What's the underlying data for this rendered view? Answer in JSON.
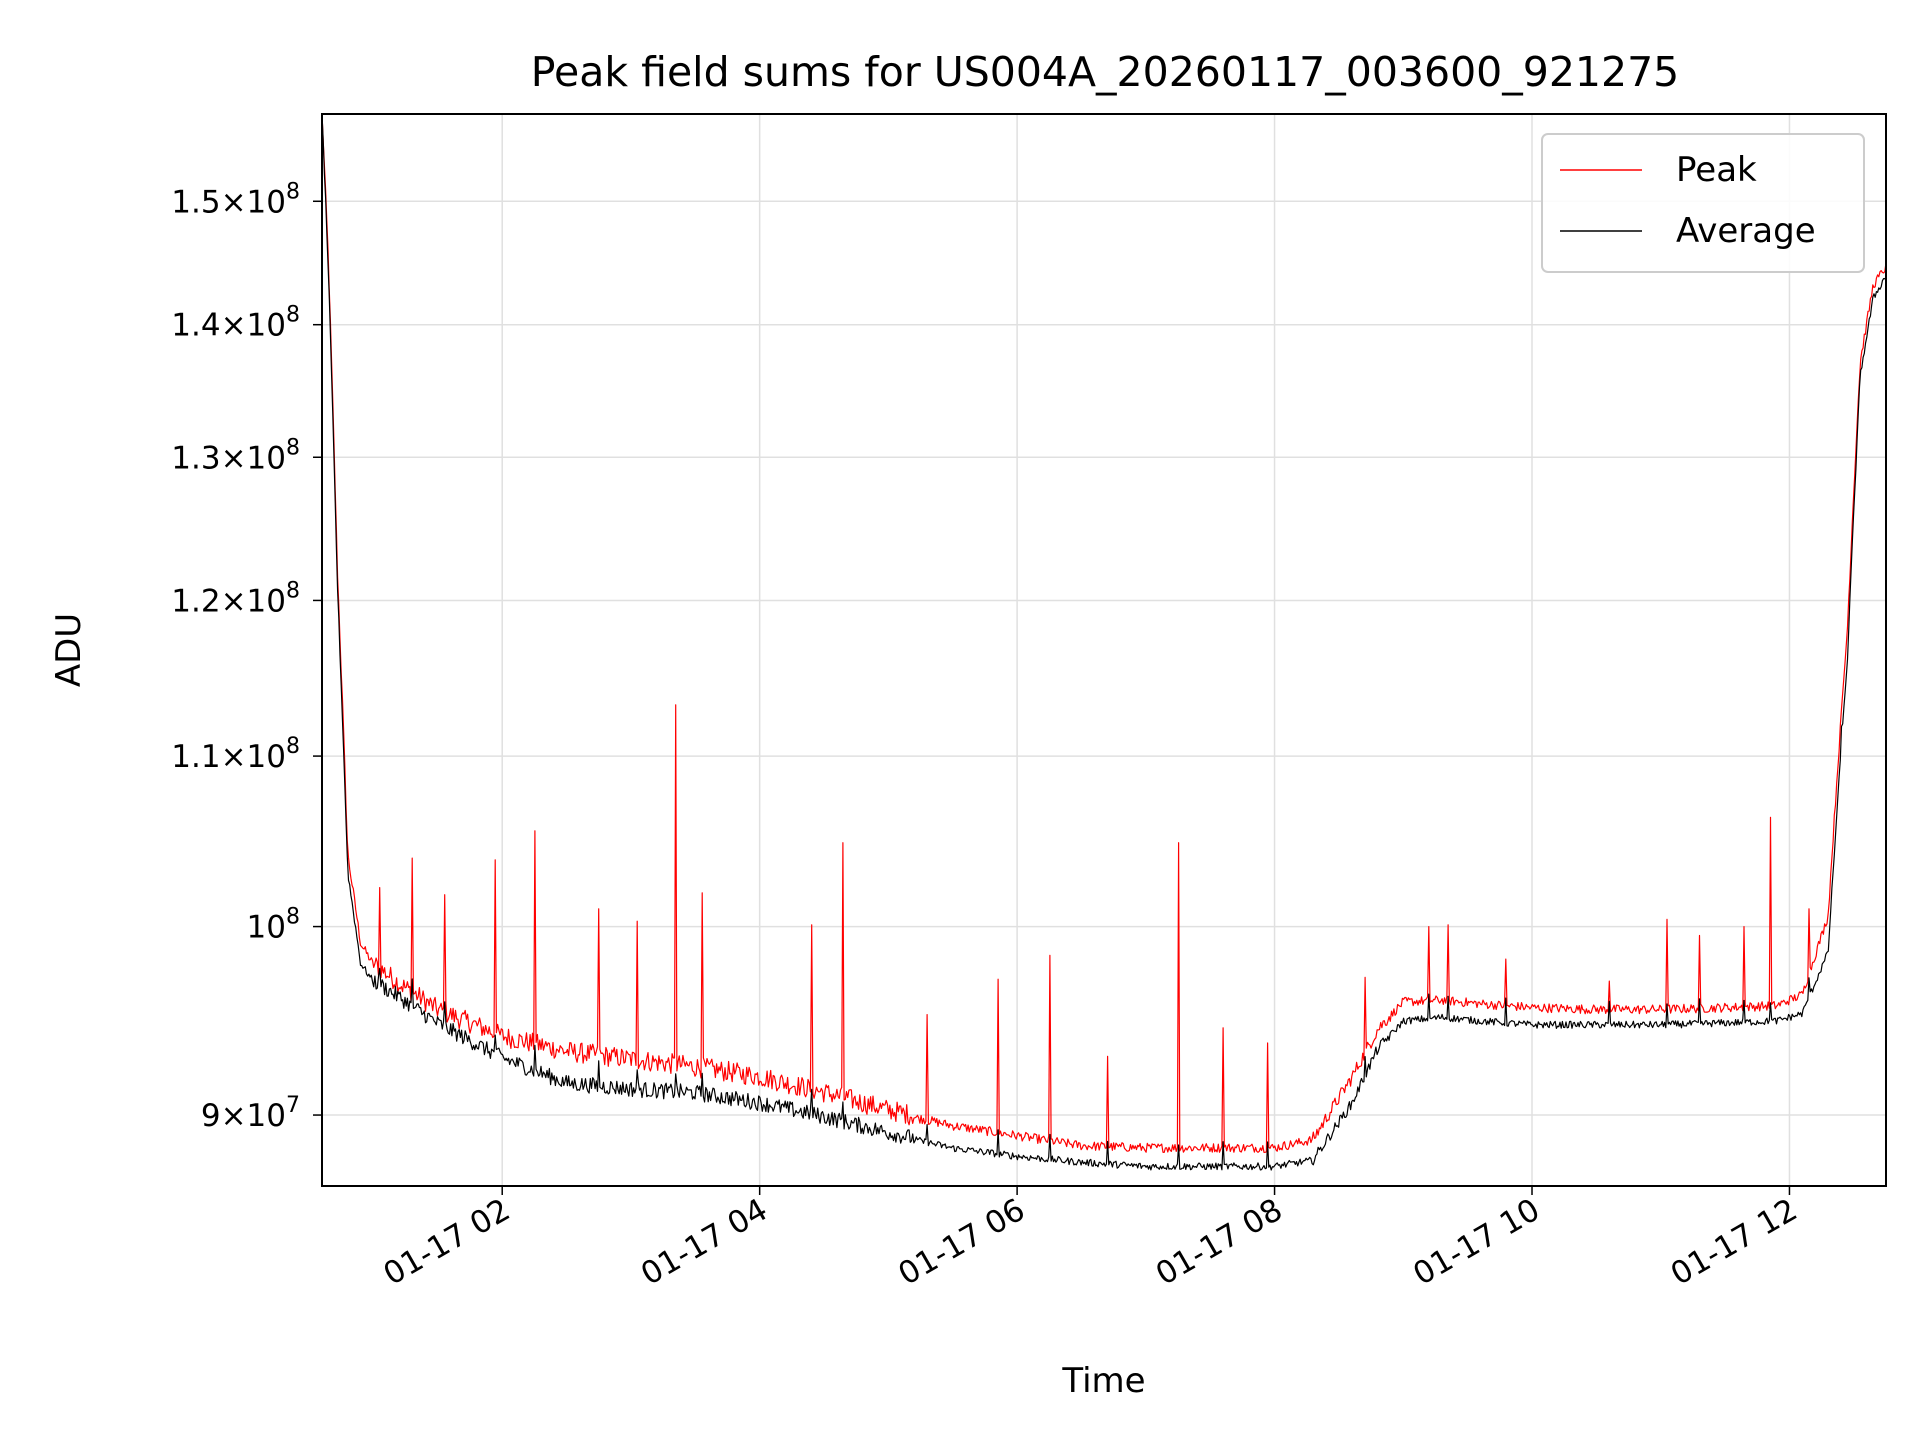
{
  "chart_data": {
    "type": "line",
    "title": "Peak field sums for US004A_20260117_003600_921275",
    "xlabel": "Time",
    "ylabel": "ADU",
    "yscale": "log",
    "xlim_hours": [
      0.6,
      12.75
    ],
    "ylim": [
      86500000,
      157500000
    ],
    "grid": true,
    "legend_loc": "upper right",
    "x_ticks": [
      {
        "hour": 2,
        "label": "01-17 02"
      },
      {
        "hour": 4,
        "label": "01-17 04"
      },
      {
        "hour": 6,
        "label": "01-17 06"
      },
      {
        "hour": 8,
        "label": "01-17 08"
      },
      {
        "hour": 10,
        "label": "01-17 10"
      },
      {
        "hour": 12,
        "label": "01-17 12"
      }
    ],
    "y_ticks": [
      {
        "value": 90000000,
        "mant": "9",
        "exp": "7"
      },
      {
        "value": 100000000,
        "mant": "",
        "exp": "8"
      },
      {
        "value": 110000000,
        "mant": "1.1",
        "exp": "8"
      },
      {
        "value": 120000000,
        "mant": "1.2",
        "exp": "8"
      },
      {
        "value": 130000000,
        "mant": "1.3",
        "exp": "8"
      },
      {
        "value": 140000000,
        "mant": "1.4",
        "exp": "8"
      },
      {
        "value": 150000000,
        "mant": "1.5",
        "exp": "8"
      }
    ],
    "series": [
      {
        "name": "Peak",
        "color": "#ff0000",
        "x_hours": [
          0.6,
          0.65,
          0.72,
          0.8,
          0.9,
          1.0,
          1.2,
          1.5,
          2.0,
          2.5,
          3.0,
          3.5,
          4.0,
          4.5,
          5.0,
          5.5,
          6.0,
          6.5,
          7.0,
          7.5,
          8.0,
          8.3,
          8.6,
          8.8,
          9.0,
          9.3,
          9.6,
          10.0,
          10.5,
          11.0,
          11.5,
          11.9,
          12.1,
          12.3,
          12.45,
          12.55,
          12.65,
          12.75
        ],
        "values": [
          157500000,
          145000000,
          122000000,
          104000000,
          99000000,
          97800000,
          96700000,
          95300000,
          93900000,
          93100000,
          92700000,
          92300000,
          91800000,
          91000000,
          90100000,
          89400000,
          88900000,
          88400000,
          88300000,
          88300000,
          88300000,
          88700000,
          91800000,
          94300000,
          95800000,
          95900000,
          95700000,
          95500000,
          95400000,
          95400000,
          95500000,
          95600000,
          96200000,
          100500000,
          118000000,
          137000000,
          143000000,
          144500000
        ]
      },
      {
        "name": "Average",
        "color": "#000000",
        "x_hours": [
          0.6,
          0.65,
          0.72,
          0.8,
          0.9,
          1.0,
          1.2,
          1.5,
          2.0,
          2.5,
          3.0,
          3.5,
          4.0,
          4.5,
          5.0,
          5.5,
          6.0,
          6.5,
          7.0,
          7.5,
          8.0,
          8.3,
          8.6,
          8.8,
          9.0,
          9.3,
          9.6,
          10.0,
          10.5,
          11.0,
          11.5,
          11.9,
          12.1,
          12.3,
          12.45,
          12.55,
          12.65,
          12.75
        ],
        "values": [
          157500000,
          144000000,
          121000000,
          103000000,
          97900000,
          96900000,
          96000000,
          94600000,
          92800000,
          91500000,
          91200000,
          91000000,
          90500000,
          89800000,
          89000000,
          88300000,
          87900000,
          87600000,
          87400000,
          87400000,
          87400000,
          87700000,
          90500000,
          93300000,
          94800000,
          95000000,
          94800000,
          94600000,
          94600000,
          94600000,
          94700000,
          94800000,
          95200000,
          98500000,
          116000000,
          136000000,
          142000000,
          143800000
        ]
      }
    ],
    "spikes": [
      {
        "hour": 1.05,
        "value": 102200000
      },
      {
        "hour": 1.3,
        "value": 103900000
      },
      {
        "hour": 1.55,
        "value": 101800000
      },
      {
        "hour": 1.95,
        "value": 103800000
      },
      {
        "hour": 2.25,
        "value": 105500000
      },
      {
        "hour": 2.75,
        "value": 101000000
      },
      {
        "hour": 3.05,
        "value": 100300000
      },
      {
        "hour": 3.35,
        "value": 113200000
      },
      {
        "hour": 3.55,
        "value": 101900000
      },
      {
        "hour": 4.4,
        "value": 100100000
      },
      {
        "hour": 4.65,
        "value": 104800000
      },
      {
        "hour": 5.3,
        "value": 95200000
      },
      {
        "hour": 5.85,
        "value": 97100000
      },
      {
        "hour": 6.25,
        "value": 98400000
      },
      {
        "hour": 6.7,
        "value": 93000000
      },
      {
        "hour": 7.25,
        "value": 104800000
      },
      {
        "hour": 7.6,
        "value": 94500000
      },
      {
        "hour": 7.95,
        "value": 93700000
      },
      {
        "hour": 8.7,
        "value": 97200000
      },
      {
        "hour": 9.2,
        "value": 100000000
      },
      {
        "hour": 9.35,
        "value": 100100000
      },
      {
        "hour": 9.8,
        "value": 98200000
      },
      {
        "hour": 10.6,
        "value": 97000000
      },
      {
        "hour": 11.05,
        "value": 100400000
      },
      {
        "hour": 11.3,
        "value": 99500000
      },
      {
        "hour": 11.65,
        "value": 100000000
      },
      {
        "hour": 11.85,
        "value": 106300000
      },
      {
        "hour": 12.15,
        "value": 101000000
      },
      {
        "hour": 12.4,
        "value": 102800000
      }
    ]
  }
}
